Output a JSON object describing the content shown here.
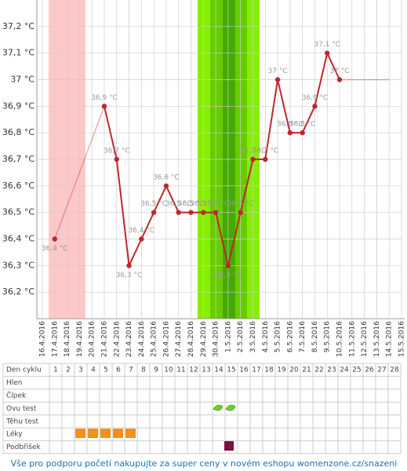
{
  "chart_data": {
    "type": "line",
    "categories": [
      "16.4.2016",
      "17.4.2016",
      "18.4.2016",
      "19.4.2016",
      "20.4.2016",
      "21.4.2016",
      "22.4.2016",
      "23.4.2016",
      "24.4.2016",
      "25.4.2016",
      "26.4.2016",
      "27.4.2016",
      "28.4.2016",
      "29.4.2016",
      "30.4.2016",
      "1.5.2016",
      "2.5.2016",
      "3.5.2016",
      "4.5.2016",
      "5.5.2016",
      "6.5.2016",
      "7.5.2016",
      "8.5.2016",
      "9.5.2016",
      "10.5.2016",
      "11.5.2016",
      "12.5.2016",
      "13.5.2016",
      "14.5.2016",
      "15.5.2016"
    ],
    "values": [
      null,
      36.4,
      null,
      null,
      null,
      36.9,
      36.7,
      36.3,
      36.4,
      36.5,
      36.6,
      36.5,
      36.5,
      36.5,
      36.5,
      36.3,
      36.5,
      36.7,
      36.7,
      37.0,
      36.8,
      36.8,
      36.9,
      37.1,
      37.0,
      null,
      null,
      null,
      null,
      null
    ],
    "value_labels": [
      null,
      "36,4 °C",
      null,
      null,
      null,
      "36,9 °C",
      "36,7 °C",
      "36,3 °C",
      "36,4 °C",
      "36,5 °C",
      "36,6 °C",
      "36,5 °C",
      "36,5 °C",
      "36,5 °C",
      "36,5 °C",
      "36,3 °C",
      "36,5 °C",
      "36,7 °C",
      "36,7 °C",
      "37 °C",
      "36,8 °C",
      "36,8 °C",
      "36,9 °C",
      "37,1 °C",
      "37 °C",
      null,
      null,
      null,
      null,
      null
    ],
    "color": "#c0262c",
    "ylim": [
      36.1,
      37.3
    ],
    "yticks": [
      {
        "value": 36.2,
        "label": "36,2 °C"
      },
      {
        "value": 36.3,
        "label": "36,3 °C"
      },
      {
        "value": 36.4,
        "label": "36,4 °C"
      },
      {
        "value": 36.5,
        "label": "36,5 °C"
      },
      {
        "value": 36.6,
        "label": "36,6 °C"
      },
      {
        "value": 36.7,
        "label": "36,7 °C"
      },
      {
        "value": 36.8,
        "label": "36,8 °C"
      },
      {
        "value": 36.9,
        "label": "36,9 °C"
      },
      {
        "value": 37.0,
        "label": "37 °C"
      },
      {
        "value": 37.1,
        "label": "37,1 °C"
      },
      {
        "value": 37.2,
        "label": "37,2 °C"
      }
    ],
    "grid": true
  },
  "table": {
    "header": "Den cyklu",
    "days": [
      1,
      2,
      3,
      4,
      5,
      6,
      7,
      8,
      9,
      10,
      11,
      12,
      13,
      14,
      15,
      16,
      17,
      18,
      19,
      20,
      21,
      22,
      23,
      24,
      25,
      26,
      27,
      28
    ],
    "rows": [
      "Hlen",
      "Čípek",
      "Ovu test",
      "Těhu test",
      "Léky",
      "Podbřišek"
    ]
  },
  "footer": "Vše pro podporu početí nakupujte za super ceny v novém eshopu womenzone.cz/snazeni"
}
